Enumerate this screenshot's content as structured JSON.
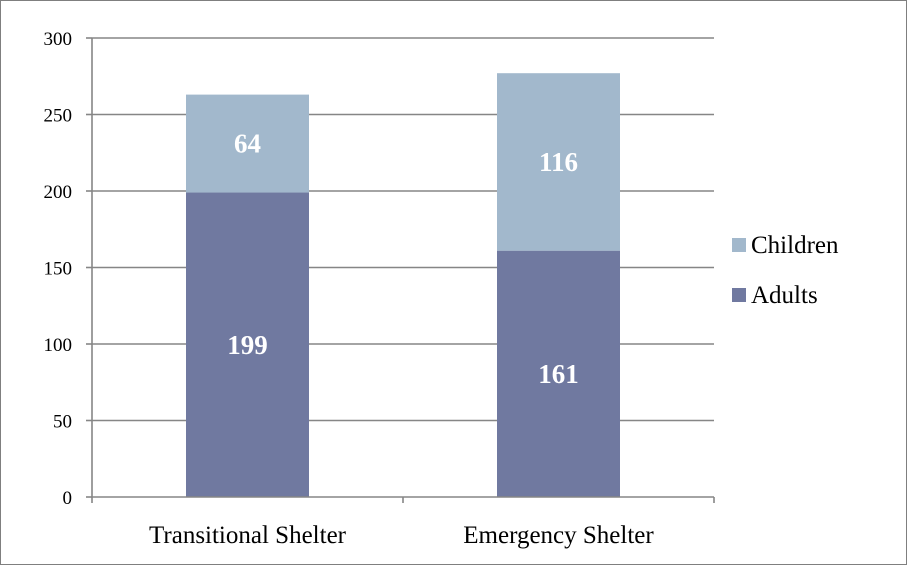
{
  "chart_data": {
    "type": "bar",
    "stacked": true,
    "categories": [
      "Transitional Shelter",
      "Emergency Shelter"
    ],
    "series": [
      {
        "name": "Adults",
        "values": [
          199,
          161
        ],
        "color": "#7079a0"
      },
      {
        "name": "Children",
        "values": [
          64,
          116
        ],
        "color": "#a2b8cc"
      }
    ],
    "ylim": [
      0,
      300
    ],
    "yticks": [
      0,
      50,
      100,
      150,
      200,
      250,
      300
    ],
    "grid": true,
    "legend_position": "right",
    "legend_order": [
      "Children",
      "Adults"
    ],
    "title": "",
    "xlabel": "",
    "ylabel": ""
  }
}
